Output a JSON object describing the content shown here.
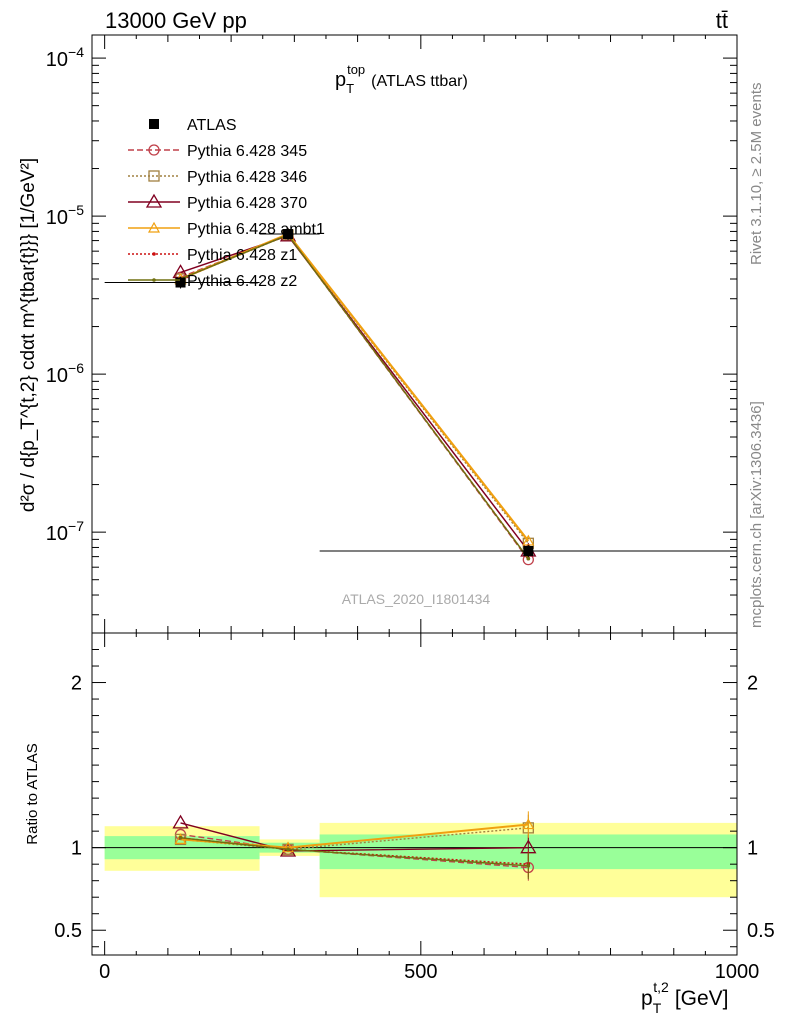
{
  "header": {
    "left": "13000 GeV pp",
    "right": "tt̄"
  },
  "side_labels": {
    "rivet": "Rivet 3.1.10, ≥ 2.5M events",
    "mcplots": "mcplots.cern.ch [arXiv:1306.3436]"
  },
  "watermark": "ATLAS_2020_I1801434",
  "colors": {
    "data": "#000000",
    "p345": "#c0404a",
    "p346": "#a08040",
    "p370": "#800020",
    "ambt1": "#f0a010",
    "z1": "#cc1010",
    "z2": "#707010",
    "band_stat": "#99ff99",
    "band_total": "#ffff99"
  },
  "chart_data": [
    {
      "type": "line",
      "title_main": "p",
      "title_sub": "T",
      "title_sup": "top",
      "title_tail": "(ATLAS ttbar)",
      "ylabel": "d²σ / d{p_T^{t,2} cdαt m^{tbar{t}}} [1/GeV²]",
      "ylabel_unit": "[1/GeV²]",
      "yscale": "log",
      "ylim": [
        2.3e-08,
        0.00014
      ],
      "xlim": [
        -20,
        1000
      ],
      "y_ticks": [
        {
          "v": 0.0001,
          "base": "10",
          "exp": "−4"
        },
        {
          "v": 1e-05,
          "base": "10",
          "exp": "−5"
        },
        {
          "v": 1e-06,
          "base": "10",
          "exp": "−6"
        },
        {
          "v": 1e-07,
          "base": "10",
          "exp": "−7"
        }
      ],
      "x": [
        120,
        290,
        670
      ],
      "x_bins": [
        [
          0,
          245
        ],
        [
          245,
          340
        ],
        [
          340,
          1000
        ]
      ],
      "series": [
        {
          "name": "ATLAS",
          "key": "data",
          "values": [
            3.8e-06,
            7.7e-06,
            7.6e-08
          ],
          "marker": "square",
          "dash": ""
        },
        {
          "name": "Pythia 6.428 345",
          "key": "p345",
          "values": [
            4.1e-06,
            7.6e-06,
            6.7e-08
          ],
          "marker": "circle",
          "dash": "6,3"
        },
        {
          "name": "Pythia 6.428 346",
          "key": "p346",
          "values": [
            4e-06,
            7.6e-06,
            8.5e-08
          ],
          "marker": "square-open",
          "dash": "2,2"
        },
        {
          "name": "Pythia 6.428 370",
          "key": "p370",
          "values": [
            4.4e-06,
            7.5e-06,
            7.6e-08
          ],
          "marker": "triangle-open",
          "dash": ""
        },
        {
          "name": "Pythia 6.428 ambt1",
          "key": "ambt1",
          "values": [
            4e-06,
            7.7e-06,
            8.8e-08
          ],
          "marker": "triangle-small",
          "dash": ""
        },
        {
          "name": "Pythia 6.428 z1",
          "key": "z1",
          "values": [
            4e-06,
            7.6e-06,
            6.8e-08
          ],
          "marker": "dot",
          "dash": "2,2"
        },
        {
          "name": "Pythia 6.428 z2",
          "key": "z2",
          "values": [
            4e-06,
            7.6e-06,
            6.8e-08
          ],
          "marker": "dot",
          "dash": ""
        }
      ],
      "legend_position": "top-left"
    },
    {
      "type": "line",
      "ylabel": "Ratio to ATLAS",
      "xlabel_main": "p",
      "xlabel_sub": "T",
      "xlabel_sup": "t,2",
      "xlabel_unit": "[GeV]",
      "ylim": [
        0.35,
        2.3
      ],
      "xlim": [
        -20,
        1000
      ],
      "y_ticks": [
        "0.5",
        "1",
        "2"
      ],
      "y_tick_values": [
        0.5,
        1,
        2
      ],
      "x_ticks": [
        "0",
        "500",
        "1000"
      ],
      "x_tick_values": [
        0,
        500,
        1000
      ],
      "x": [
        120,
        290,
        670
      ],
      "bands": [
        {
          "x_range": [
            0,
            245
          ],
          "stat": [
            0.93,
            1.07
          ],
          "total": [
            0.86,
            1.13
          ]
        },
        {
          "x_range": [
            245,
            340
          ],
          "stat": [
            0.97,
            1.03
          ],
          "total": [
            0.95,
            1.05
          ]
        },
        {
          "x_range": [
            340,
            1000
          ],
          "stat": [
            0.87,
            1.08
          ],
          "total": [
            0.7,
            1.15
          ]
        }
      ],
      "series": [
        {
          "name": "Pythia 6.428 345",
          "key": "p345",
          "values": [
            1.08,
            0.99,
            0.88
          ],
          "marker": "circle",
          "dash": "6,3"
        },
        {
          "name": "Pythia 6.428 346",
          "key": "p346",
          "values": [
            1.05,
            0.99,
            1.12
          ],
          "marker": "square-open",
          "dash": "2,2"
        },
        {
          "name": "Pythia 6.428 370",
          "key": "p370",
          "values": [
            1.15,
            0.98,
            1.0
          ],
          "marker": "triangle-open",
          "dash": ""
        },
        {
          "name": "Pythia 6.428 ambt1",
          "key": "ambt1",
          "values": [
            1.05,
            1.0,
            1.14
          ],
          "marker": "triangle-small",
          "dash": ""
        },
        {
          "name": "Pythia 6.428 z1",
          "key": "z1",
          "values": [
            1.06,
            0.99,
            0.9
          ],
          "marker": "dot",
          "dash": "2,2"
        },
        {
          "name": "Pythia 6.428 z2",
          "key": "z2",
          "values": [
            1.06,
            0.99,
            0.89
          ],
          "marker": "dot",
          "dash": ""
        }
      ]
    }
  ]
}
